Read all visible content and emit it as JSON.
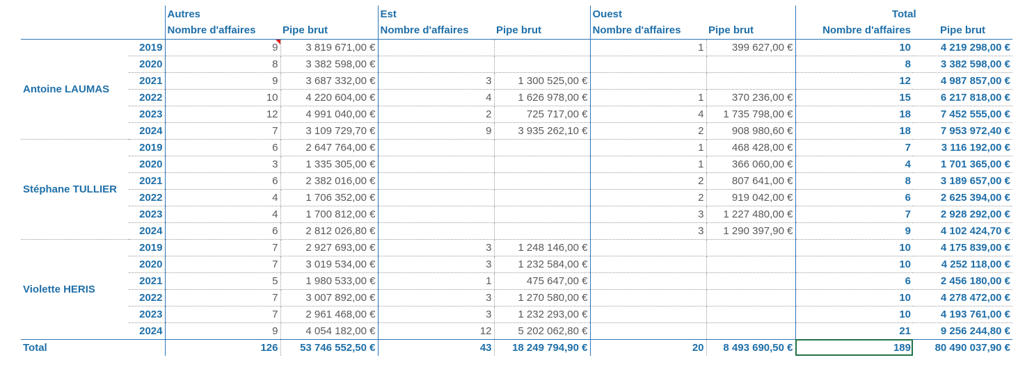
{
  "table": {
    "groups": [
      {
        "name": "Autres",
        "columns": [
          "Nombre d'affaires",
          "Pipe brut"
        ]
      },
      {
        "name": "Est",
        "columns": [
          "Nombre d'affaires",
          "Pipe brut"
        ]
      },
      {
        "name": "Ouest",
        "columns": [
          "Nombre d'affaires",
          "Pipe brut"
        ]
      },
      {
        "name": "Total",
        "columns": [
          "Nombre d'affaires",
          "Pipe brut"
        ]
      }
    ],
    "sections": [
      {
        "name": "Antoine LAUMAS",
        "rows": [
          {
            "year": "2019",
            "cells": [
              "9",
              "3 819 671,00 €",
              null,
              null,
              "1",
              "399 627,00 €",
              "10",
              "4 219 298,00 €"
            ]
          },
          {
            "year": "2020",
            "cells": [
              "8",
              "3 382 598,00 €",
              null,
              null,
              null,
              null,
              "8",
              "3 382 598,00 €"
            ]
          },
          {
            "year": "2021",
            "cells": [
              "9",
              "3 687 332,00 €",
              "3",
              "1 300 525,00 €",
              null,
              null,
              "12",
              "4 987 857,00 €"
            ]
          },
          {
            "year": "2022",
            "cells": [
              "10",
              "4 220 604,00 €",
              "4",
              "1 626 978,00 €",
              "1",
              "370 236,00 €",
              "15",
              "6 217 818,00 €"
            ]
          },
          {
            "year": "2023",
            "cells": [
              "12",
              "4 991 040,00 €",
              "2",
              "725 717,00 €",
              "4",
              "1 735 798,00 €",
              "18",
              "7 452 555,00 €"
            ]
          },
          {
            "year": "2024",
            "cells": [
              "7",
              "3 109 729,70 €",
              "9",
              "3 935 262,10 €",
              "2",
              "908 980,60 €",
              "18",
              "7 953 972,40 €"
            ]
          }
        ]
      },
      {
        "name": "Stéphane TULLIER",
        "rows": [
          {
            "year": "2019",
            "cells": [
              "6",
              "2 647 764,00 €",
              null,
              null,
              "1",
              "468 428,00 €",
              "7",
              "3 116 192,00 €"
            ]
          },
          {
            "year": "2020",
            "cells": [
              "3",
              "1 335 305,00 €",
              null,
              null,
              "1",
              "366 060,00 €",
              "4",
              "1 701 365,00 €"
            ]
          },
          {
            "year": "2021",
            "cells": [
              "6",
              "2 382 016,00 €",
              null,
              null,
              "2",
              "807 641,00 €",
              "8",
              "3 189 657,00 €"
            ]
          },
          {
            "year": "2022",
            "cells": [
              "4",
              "1 706 352,00 €",
              null,
              null,
              "2",
              "919 042,00 €",
              "6",
              "2 625 394,00 €"
            ]
          },
          {
            "year": "2023",
            "cells": [
              "4",
              "1 700 812,00 €",
              null,
              null,
              "3",
              "1 227 480,00 €",
              "7",
              "2 928 292,00 €"
            ]
          },
          {
            "year": "2024",
            "cells": [
              "6",
              "2 812 026,80 €",
              null,
              null,
              "3",
              "1 290 397,90 €",
              "9",
              "4 102 424,70 €"
            ]
          }
        ]
      },
      {
        "name": "Violette HERIS",
        "rows": [
          {
            "year": "2019",
            "cells": [
              "7",
              "2 927 693,00 €",
              "3",
              "1 248 146,00 €",
              null,
              null,
              "10",
              "4 175 839,00 €"
            ]
          },
          {
            "year": "2020",
            "cells": [
              "7",
              "3 019 534,00 €",
              "3",
              "1 232 584,00 €",
              null,
              null,
              "10",
              "4 252 118,00 €"
            ]
          },
          {
            "year": "2021",
            "cells": [
              "5",
              "1 980 533,00 €",
              "1",
              "475 647,00 €",
              null,
              null,
              "6",
              "2 456 180,00 €"
            ]
          },
          {
            "year": "2022",
            "cells": [
              "7",
              "3 007 892,00 €",
              "3",
              "1 270 580,00 €",
              null,
              null,
              "10",
              "4 278 472,00 €"
            ]
          },
          {
            "year": "2023",
            "cells": [
              "7",
              "2 961 468,00 €",
              "3",
              "1 232 293,00 €",
              null,
              null,
              "10",
              "4 193 761,00 €"
            ]
          },
          {
            "year": "2024",
            "cells": [
              "9",
              "4 054 182,00 €",
              "12",
              "5 202 062,80 €",
              null,
              null,
              "21",
              "9 256 244,80 €"
            ]
          }
        ]
      }
    ],
    "total": {
      "label": "Total",
      "cells": [
        "126",
        "53 746 552,50 €",
        "43",
        "18 249 794,90 €",
        "20",
        "8 493 690,50 €",
        "189",
        "80 490 037,90 €"
      ]
    }
  }
}
